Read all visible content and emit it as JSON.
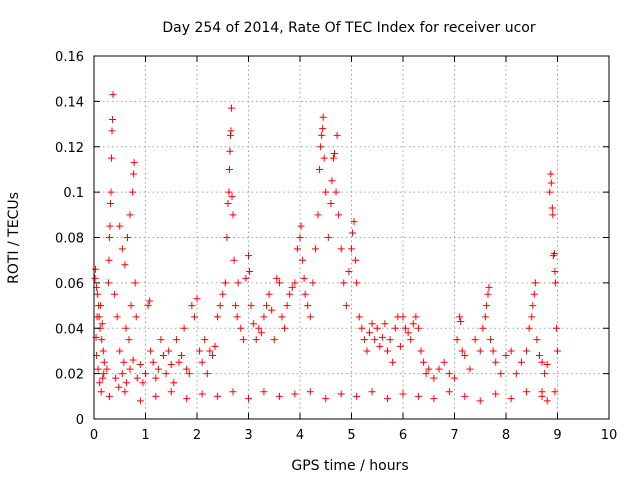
{
  "chart_data": {
    "type": "scatter",
    "title": "Day 254 of 2014, Rate Of TEC Index for receiver ucor",
    "xlabel": "GPS time / hours",
    "ylabel": "ROTI / TECUs",
    "xlim": [
      0,
      10
    ],
    "ylim": [
      0,
      0.16
    ],
    "x_ticks": [
      0,
      1,
      2,
      3,
      4,
      5,
      6,
      7,
      8,
      9,
      10
    ],
    "x_tick_labels": [
      "0",
      "1",
      "2",
      "3",
      "4",
      "5",
      "6",
      "7",
      "8",
      "9",
      "10"
    ],
    "y_ticks": [
      0,
      0.02,
      0.04,
      0.06,
      0.08,
      0.1,
      0.12,
      0.14,
      0.16
    ],
    "y_tick_labels": [
      "0",
      "0.02",
      "0.04",
      "0.06",
      "0.08",
      "0.1",
      "0.12",
      "0.14",
      "0.16"
    ],
    "grid": true,
    "marker": "+",
    "color": "#ff0000",
    "series": [
      {
        "name": "ROTI",
        "points": [
          [
            0.02,
            0.062
          ],
          [
            0.03,
            0.066
          ],
          [
            0.05,
            0.058
          ],
          [
            0.07,
            0.055
          ],
          [
            0.09,
            0.05
          ],
          [
            0.1,
            0.045
          ],
          [
            0.12,
            0.04
          ],
          [
            0.15,
            0.035
          ],
          [
            0.18,
            0.03
          ],
          [
            0.2,
            0.025
          ],
          [
            0.05,
            0.028
          ],
          [
            0.08,
            0.022
          ],
          [
            0.11,
            0.016
          ],
          [
            0.14,
            0.012
          ],
          [
            0.17,
            0.018
          ],
          [
            0.06,
            0.045
          ],
          [
            0.13,
            0.05
          ],
          [
            0.16,
            0.042
          ],
          [
            0.04,
            0.036
          ],
          [
            0.19,
            0.02
          ],
          [
            0.28,
            0.06
          ],
          [
            0.3,
            0.08
          ],
          [
            0.32,
            0.095
          ],
          [
            0.33,
            0.1
          ],
          [
            0.34,
            0.115
          ],
          [
            0.35,
            0.127
          ],
          [
            0.36,
            0.132
          ],
          [
            0.37,
            0.143
          ],
          [
            0.31,
            0.085
          ],
          [
            0.29,
            0.07
          ],
          [
            0.4,
            0.055
          ],
          [
            0.45,
            0.045
          ],
          [
            0.5,
            0.085
          ],
          [
            0.55,
            0.075
          ],
          [
            0.6,
            0.068
          ],
          [
            0.65,
            0.08
          ],
          [
            0.7,
            0.09
          ],
          [
            0.75,
            0.1
          ],
          [
            0.77,
            0.108
          ],
          [
            0.78,
            0.113
          ],
          [
            0.8,
            0.06
          ],
          [
            0.82,
            0.045
          ],
          [
            0.62,
            0.04
          ],
          [
            0.68,
            0.035
          ],
          [
            0.72,
            0.05
          ],
          [
            0.5,
            0.03
          ],
          [
            0.58,
            0.025
          ],
          [
            0.25,
            0.022
          ],
          [
            0.42,
            0.018
          ],
          [
            0.48,
            0.014
          ],
          [
            0.55,
            0.02
          ],
          [
            0.63,
            0.016
          ],
          [
            0.7,
            0.022
          ],
          [
            0.76,
            0.026
          ],
          [
            0.84,
            0.018
          ],
          [
            0.9,
            0.024
          ],
          [
            0.95,
            0.016
          ],
          [
            1.0,
            0.02
          ],
          [
            1.05,
            0.05
          ],
          [
            1.08,
            0.052
          ],
          [
            1.1,
            0.03
          ],
          [
            1.15,
            0.025
          ],
          [
            1.2,
            0.018
          ],
          [
            1.25,
            0.022
          ],
          [
            1.3,
            0.035
          ],
          [
            1.35,
            0.028
          ],
          [
            1.4,
            0.02
          ],
          [
            1.45,
            0.03
          ],
          [
            1.5,
            0.024
          ],
          [
            1.55,
            0.016
          ],
          [
            1.6,
            0.035
          ],
          [
            1.65,
            0.025
          ],
          [
            1.7,
            0.028
          ],
          [
            1.75,
            0.04
          ],
          [
            1.8,
            0.022
          ],
          [
            1.85,
            0.02
          ],
          [
            1.9,
            0.05
          ],
          [
            1.95,
            0.045
          ],
          [
            2.0,
            0.053
          ],
          [
            2.05,
            0.03
          ],
          [
            2.1,
            0.025
          ],
          [
            2.15,
            0.035
          ],
          [
            2.2,
            0.02
          ],
          [
            2.25,
            0.03
          ],
          [
            2.3,
            0.028
          ],
          [
            2.35,
            0.032
          ],
          [
            2.4,
            0.045
          ],
          [
            2.45,
            0.05
          ],
          [
            2.5,
            0.055
          ],
          [
            2.55,
            0.06
          ],
          [
            2.58,
            0.08
          ],
          [
            2.6,
            0.095
          ],
          [
            2.62,
            0.1
          ],
          [
            2.63,
            0.11
          ],
          [
            2.64,
            0.118
          ],
          [
            2.65,
            0.125
          ],
          [
            2.66,
            0.127
          ],
          [
            2.67,
            0.137
          ],
          [
            2.68,
            0.098
          ],
          [
            2.7,
            0.09
          ],
          [
            2.72,
            0.07
          ],
          [
            2.75,
            0.05
          ],
          [
            2.78,
            0.045
          ],
          [
            2.8,
            0.06
          ],
          [
            2.85,
            0.04
          ],
          [
            2.9,
            0.035
          ],
          [
            2.95,
            0.062
          ],
          [
            3.0,
            0.072
          ],
          [
            3.02,
            0.065
          ],
          [
            3.05,
            0.05
          ],
          [
            3.1,
            0.042
          ],
          [
            3.15,
            0.035
          ],
          [
            3.2,
            0.04
          ],
          [
            3.25,
            0.038
          ],
          [
            3.3,
            0.045
          ],
          [
            3.35,
            0.05
          ],
          [
            3.4,
            0.055
          ],
          [
            3.45,
            0.048
          ],
          [
            3.5,
            0.035
          ],
          [
            3.55,
            0.062
          ],
          [
            3.6,
            0.06
          ],
          [
            3.65,
            0.045
          ],
          [
            3.7,
            0.04
          ],
          [
            3.75,
            0.05
          ],
          [
            3.8,
            0.055
          ],
          [
            3.85,
            0.058
          ],
          [
            3.9,
            0.06
          ],
          [
            3.95,
            0.075
          ],
          [
            4.0,
            0.08
          ],
          [
            4.02,
            0.085
          ],
          [
            4.05,
            0.07
          ],
          [
            4.08,
            0.062
          ],
          [
            4.1,
            0.055
          ],
          [
            4.15,
            0.05
          ],
          [
            4.2,
            0.045
          ],
          [
            4.25,
            0.06
          ],
          [
            4.3,
            0.075
          ],
          [
            4.35,
            0.09
          ],
          [
            4.38,
            0.11
          ],
          [
            4.4,
            0.12
          ],
          [
            4.42,
            0.125
          ],
          [
            4.44,
            0.128
          ],
          [
            4.45,
            0.133
          ],
          [
            4.47,
            0.115
          ],
          [
            4.5,
            0.1
          ],
          [
            4.55,
            0.08
          ],
          [
            4.6,
            0.095
          ],
          [
            4.62,
            0.105
          ],
          [
            4.65,
            0.115
          ],
          [
            4.67,
            0.117
          ],
          [
            4.7,
            0.1
          ],
          [
            4.72,
            0.125
          ],
          [
            4.75,
            0.09
          ],
          [
            4.8,
            0.075
          ],
          [
            4.85,
            0.06
          ],
          [
            4.9,
            0.05
          ],
          [
            4.95,
            0.065
          ],
          [
            5.0,
            0.075
          ],
          [
            5.02,
            0.082
          ],
          [
            5.05,
            0.087
          ],
          [
            5.08,
            0.07
          ],
          [
            5.1,
            0.06
          ],
          [
            5.15,
            0.045
          ],
          [
            5.2,
            0.04
          ],
          [
            5.25,
            0.035
          ],
          [
            5.3,
            0.03
          ],
          [
            5.35,
            0.038
          ],
          [
            5.4,
            0.042
          ],
          [
            5.45,
            0.035
          ],
          [
            5.5,
            0.04
          ],
          [
            5.55,
            0.032
          ],
          [
            5.6,
            0.036
          ],
          [
            5.65,
            0.042
          ],
          [
            5.7,
            0.03
          ],
          [
            5.75,
            0.035
          ],
          [
            5.8,
            0.025
          ],
          [
            5.85,
            0.04
          ],
          [
            5.9,
            0.045
          ],
          [
            5.95,
            0.032
          ],
          [
            6.0,
            0.045
          ],
          [
            6.05,
            0.04
          ],
          [
            6.1,
            0.038
          ],
          [
            6.15,
            0.035
          ],
          [
            6.2,
            0.042
          ],
          [
            6.25,
            0.045
          ],
          [
            6.3,
            0.04
          ],
          [
            6.35,
            0.03
          ],
          [
            6.4,
            0.025
          ],
          [
            6.45,
            0.02
          ],
          [
            6.5,
            0.022
          ],
          [
            6.6,
            0.018
          ],
          [
            6.7,
            0.022
          ],
          [
            6.8,
            0.025
          ],
          [
            6.9,
            0.02
          ],
          [
            7.0,
            0.018
          ],
          [
            7.05,
            0.035
          ],
          [
            7.1,
            0.045
          ],
          [
            7.12,
            0.043
          ],
          [
            7.15,
            0.03
          ],
          [
            7.2,
            0.028
          ],
          [
            7.3,
            0.022
          ],
          [
            7.4,
            0.035
          ],
          [
            7.5,
            0.03
          ],
          [
            7.55,
            0.04
          ],
          [
            7.6,
            0.045
          ],
          [
            7.62,
            0.05
          ],
          [
            7.65,
            0.055
          ],
          [
            7.67,
            0.058
          ],
          [
            7.7,
            0.035
          ],
          [
            7.75,
            0.03
          ],
          [
            7.8,
            0.025
          ],
          [
            7.9,
            0.02
          ],
          [
            8.0,
            0.028
          ],
          [
            8.1,
            0.03
          ],
          [
            8.2,
            0.02
          ],
          [
            8.3,
            0.025
          ],
          [
            8.4,
            0.03
          ],
          [
            8.45,
            0.04
          ],
          [
            8.5,
            0.045
          ],
          [
            8.52,
            0.05
          ],
          [
            8.55,
            0.055
          ],
          [
            8.57,
            0.06
          ],
          [
            8.6,
            0.035
          ],
          [
            8.65,
            0.028
          ],
          [
            8.7,
            0.025
          ],
          [
            8.75,
            0.02
          ],
          [
            8.8,
            0.024
          ],
          [
            8.85,
            0.1
          ],
          [
            8.87,
            0.108
          ],
          [
            8.88,
            0.104
          ],
          [
            8.9,
            0.093
          ],
          [
            8.91,
            0.09
          ],
          [
            8.92,
            0.072
          ],
          [
            8.94,
            0.073
          ],
          [
            8.95,
            0.065
          ],
          [
            8.96,
            0.06
          ],
          [
            8.98,
            0.04
          ],
          [
            9.0,
            0.03
          ],
          [
            8.7,
            0.012
          ],
          [
            8.8,
            0.008
          ],
          [
            0.3,
            0.01
          ],
          [
            0.6,
            0.012
          ],
          [
            0.9,
            0.008
          ],
          [
            1.2,
            0.01
          ],
          [
            1.5,
            0.012
          ],
          [
            1.8,
            0.009
          ],
          [
            2.1,
            0.011
          ],
          [
            2.4,
            0.01
          ],
          [
            2.7,
            0.012
          ],
          [
            3.0,
            0.009
          ],
          [
            3.3,
            0.012
          ],
          [
            3.6,
            0.01
          ],
          [
            3.9,
            0.011
          ],
          [
            4.2,
            0.012
          ],
          [
            4.5,
            0.009
          ],
          [
            4.8,
            0.011
          ],
          [
            5.1,
            0.01
          ],
          [
            5.4,
            0.012
          ],
          [
            5.7,
            0.009
          ],
          [
            6.0,
            0.011
          ],
          [
            6.3,
            0.01
          ],
          [
            6.6,
            0.009
          ],
          [
            6.9,
            0.012
          ],
          [
            7.2,
            0.01
          ],
          [
            7.5,
            0.008
          ],
          [
            7.8,
            0.011
          ],
          [
            8.1,
            0.009
          ],
          [
            8.4,
            0.012
          ],
          [
            8.7,
            0.01
          ],
          [
            8.95,
            0.012
          ]
        ]
      }
    ]
  }
}
